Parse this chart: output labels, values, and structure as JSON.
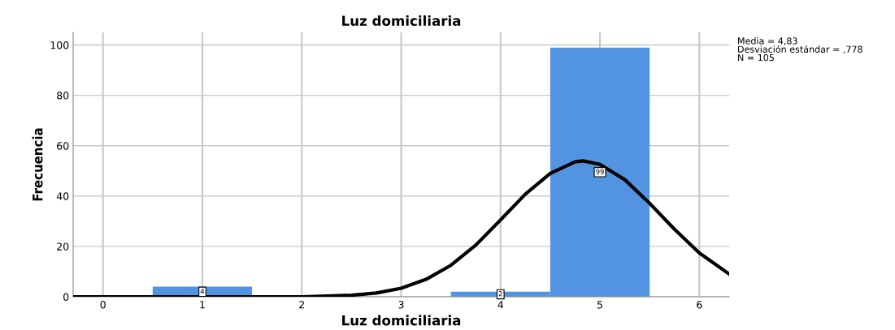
{
  "chart_data": {
    "type": "histogram",
    "title": "Luz domiciliaria",
    "xlabel": "Luz domiciliaria",
    "ylabel": "Frecuencia",
    "bins": [
      0.5,
      1.5,
      2.5,
      3.5,
      4.5,
      5.5
    ],
    "values": [
      4,
      0,
      0,
      2,
      99
    ],
    "color": "#5294e2",
    "value_labels": [
      "4",
      null,
      null,
      "2",
      "99"
    ],
    "series": [
      {
        "type": "line",
        "color": "#000000",
        "x": [
          -0.3,
          1,
          2,
          2.5,
          2.75,
          3,
          3.25,
          3.5,
          3.75,
          4,
          4.25,
          4.5,
          4.75,
          4.83,
          5,
          5.25,
          5.5,
          5.75,
          6,
          6.3
        ],
        "values": [
          0,
          0,
          0,
          0.6,
          1.5,
          3.4,
          6.9,
          12.5,
          20.5,
          30.5,
          40.8,
          49,
          53.6,
          54,
          52.6,
          46.5,
          37.1,
          26.8,
          17.4,
          9
        ]
      }
    ],
    "annotations": [
      "Media = 4,83\nDesviación estándar = ,778\nN = 105"
    ],
    "xlim": [
      -0.3,
      6.3
    ],
    "xticks": [
      0,
      1,
      2,
      3,
      4,
      5,
      6
    ],
    "ylim": [
      0,
      105
    ],
    "yticks": [
      0,
      20,
      40,
      60,
      80,
      100
    ],
    "grid": true,
    "marker": "none",
    "line_style": "solid",
    "legend": false
  }
}
